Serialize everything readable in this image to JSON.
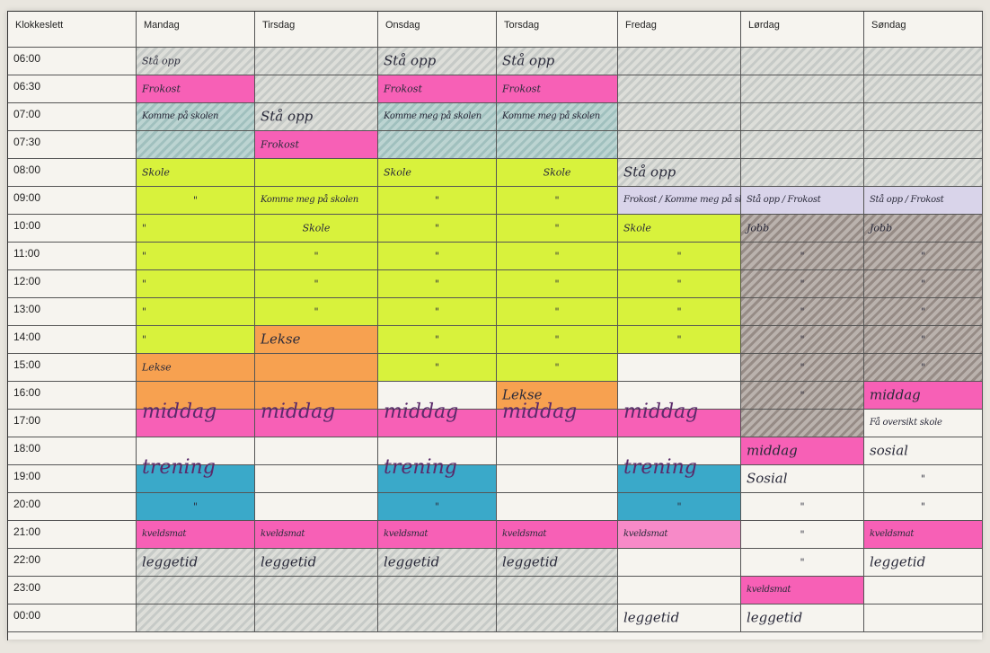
{
  "header": {
    "time_col": "Klokkeslett",
    "days": [
      "Mandag",
      "Tirsdag",
      "Onsdag",
      "Torsdag",
      "Fredag",
      "Lørdag",
      "Søndag"
    ]
  },
  "times": [
    "06:00",
    "06:30",
    "07:00",
    "07:30",
    "08:00",
    "09:00",
    "10:00",
    "11:00",
    "12:00",
    "13:00",
    "14:00",
    "15:00",
    "16:00",
    "17:00",
    "18:00",
    "19:00",
    "20:00",
    "21:00",
    "22:00",
    "23:00",
    "00:00"
  ],
  "colors": {
    "pink": "#f760b6",
    "yellow": "#d8f23c",
    "orange": "#f7a150",
    "blue": "#3aa9c9",
    "gray": "#a8b0ad",
    "teal": "#7fb5b0",
    "brown": "#8a7d78"
  },
  "cells": [
    {
      "c": 0,
      "r": 0,
      "t": "Stå opp",
      "style": "hatch-gray"
    },
    {
      "c": 0,
      "r": 1,
      "t": "Frokost",
      "style": "pink"
    },
    {
      "c": 0,
      "r": 2,
      "t": "Komme på skolen",
      "style": "hatch-teal",
      "cls": "small"
    },
    {
      "c": 0,
      "r": 3,
      "t": "",
      "style": "hatch-teal"
    },
    {
      "c": 0,
      "r": 4,
      "t": "Skole",
      "style": "yellow"
    },
    {
      "c": 0,
      "r": 5,
      "t": "\"",
      "style": "yellow",
      "cls": "centered"
    },
    {
      "c": 0,
      "r": 6,
      "t": "\"",
      "style": "yellow"
    },
    {
      "c": 0,
      "r": 7,
      "t": "\"",
      "style": "yellow"
    },
    {
      "c": 0,
      "r": 8,
      "t": "\"",
      "style": "yellow"
    },
    {
      "c": 0,
      "r": 9,
      "t": "\"",
      "style": "yellow"
    },
    {
      "c": 0,
      "r": 10,
      "t": "\"",
      "style": "yellow"
    },
    {
      "c": 0,
      "r": 11,
      "t": "Lekse",
      "style": "orange"
    },
    {
      "c": 0,
      "r": 12,
      "t": "",
      "style": "orange"
    },
    {
      "c": 0,
      "r": 13,
      "t": "middag",
      "style": "pink",
      "cls": "big"
    },
    {
      "c": 0,
      "r": 15,
      "t": "trening",
      "style": "blue",
      "cls": "big"
    },
    {
      "c": 0,
      "r": 16,
      "t": "\"",
      "style": "blue",
      "cls": "centered"
    },
    {
      "c": 0,
      "r": 17,
      "t": "kveldsmat",
      "style": "pink",
      "cls": "small"
    },
    {
      "c": 0,
      "r": 18,
      "t": "leggetid",
      "style": "hatch-gray",
      "cls": "mid"
    },
    {
      "c": 0,
      "r": 19,
      "t": "",
      "style": "hatch-gray"
    },
    {
      "c": 0,
      "r": 20,
      "t": "",
      "style": "hatch-gray"
    },
    {
      "c": 1,
      "r": 0,
      "t": "",
      "style": "hatch-gray"
    },
    {
      "c": 1,
      "r": 1,
      "t": "",
      "style": "hatch-gray"
    },
    {
      "c": 1,
      "r": 2,
      "t": "Stå opp",
      "style": "hatch-gray",
      "cls": "mid"
    },
    {
      "c": 1,
      "r": 3,
      "t": "Frokost",
      "style": "pink"
    },
    {
      "c": 1,
      "r": 4,
      "t": "",
      "style": "yellow"
    },
    {
      "c": 1,
      "r": 5,
      "t": "Komme meg på skolen",
      "style": "yellow",
      "cls": "small"
    },
    {
      "c": 1,
      "r": 6,
      "t": "Skole",
      "style": "yellow",
      "cls": "centered"
    },
    {
      "c": 1,
      "r": 7,
      "t": "\"",
      "style": "yellow",
      "cls": "centered"
    },
    {
      "c": 1,
      "r": 8,
      "t": "\"",
      "style": "yellow",
      "cls": "centered"
    },
    {
      "c": 1,
      "r": 9,
      "t": "\"",
      "style": "yellow",
      "cls": "centered"
    },
    {
      "c": 1,
      "r": 10,
      "t": "Lekse",
      "style": "orange",
      "cls": "mid"
    },
    {
      "c": 1,
      "r": 11,
      "t": "",
      "style": "orange"
    },
    {
      "c": 1,
      "r": 12,
      "t": "",
      "style": "orange"
    },
    {
      "c": 1,
      "r": 13,
      "t": "middag",
      "style": "pink",
      "cls": "big"
    },
    {
      "c": 1,
      "r": 17,
      "t": "kveldsmat",
      "style": "pink",
      "cls": "small"
    },
    {
      "c": 1,
      "r": 18,
      "t": "leggetid",
      "style": "hatch-gray",
      "cls": "mid"
    },
    {
      "c": 1,
      "r": 19,
      "t": "",
      "style": "hatch-gray"
    },
    {
      "c": 1,
      "r": 20,
      "t": "",
      "style": "hatch-gray"
    },
    {
      "c": 2,
      "r": 0,
      "t": "Stå opp",
      "style": "hatch-gray",
      "cls": "mid"
    },
    {
      "c": 2,
      "r": 1,
      "t": "Frokost",
      "style": "pink"
    },
    {
      "c": 2,
      "r": 2,
      "t": "Komme meg på skolen",
      "style": "hatch-teal",
      "cls": "small"
    },
    {
      "c": 2,
      "r": 3,
      "t": "",
      "style": "hatch-teal"
    },
    {
      "c": 2,
      "r": 4,
      "t": "Skole",
      "style": "yellow"
    },
    {
      "c": 2,
      "r": 5,
      "t": "\"",
      "style": "yellow",
      "cls": "centered"
    },
    {
      "c": 2,
      "r": 6,
      "t": "\"",
      "style": "yellow",
      "cls": "centered"
    },
    {
      "c": 2,
      "r": 7,
      "t": "\"",
      "style": "yellow",
      "cls": "centered"
    },
    {
      "c": 2,
      "r": 8,
      "t": "\"",
      "style": "yellow",
      "cls": "centered"
    },
    {
      "c": 2,
      "r": 9,
      "t": "\"",
      "style": "yellow",
      "cls": "centered"
    },
    {
      "c": 2,
      "r": 10,
      "t": "\"",
      "style": "yellow",
      "cls": "centered"
    },
    {
      "c": 2,
      "r": 11,
      "t": "\"",
      "style": "yellow",
      "cls": "centered"
    },
    {
      "c": 2,
      "r": 13,
      "t": "middag",
      "style": "pink",
      "cls": "big"
    },
    {
      "c": 2,
      "r": 15,
      "t": "trening",
      "style": "blue",
      "cls": "big"
    },
    {
      "c": 2,
      "r": 16,
      "t": "\"",
      "style": "blue",
      "cls": "centered"
    },
    {
      "c": 2,
      "r": 17,
      "t": "kveldsmat",
      "style": "pink",
      "cls": "small"
    },
    {
      "c": 2,
      "r": 18,
      "t": "leggetid",
      "style": "hatch-gray",
      "cls": "mid"
    },
    {
      "c": 2,
      "r": 19,
      "t": "",
      "style": "hatch-gray"
    },
    {
      "c": 2,
      "r": 20,
      "t": "",
      "style": "hatch-gray"
    },
    {
      "c": 3,
      "r": 0,
      "t": "Stå opp",
      "style": "hatch-gray",
      "cls": "mid"
    },
    {
      "c": 3,
      "r": 1,
      "t": "Frokost",
      "style": "pink"
    },
    {
      "c": 3,
      "r": 2,
      "t": "Komme meg på skolen",
      "style": "hatch-teal",
      "cls": "small"
    },
    {
      "c": 3,
      "r": 3,
      "t": "",
      "style": "hatch-teal"
    },
    {
      "c": 3,
      "r": 4,
      "t": "Skole",
      "style": "yellow",
      "cls": "centered"
    },
    {
      "c": 3,
      "r": 5,
      "t": "\"",
      "style": "yellow",
      "cls": "centered"
    },
    {
      "c": 3,
      "r": 6,
      "t": "\"",
      "style": "yellow",
      "cls": "centered"
    },
    {
      "c": 3,
      "r": 7,
      "t": "\"",
      "style": "yellow",
      "cls": "centered"
    },
    {
      "c": 3,
      "r": 8,
      "t": "\"",
      "style": "yellow",
      "cls": "centered"
    },
    {
      "c": 3,
      "r": 9,
      "t": "\"",
      "style": "yellow",
      "cls": "centered"
    },
    {
      "c": 3,
      "r": 10,
      "t": "\"",
      "style": "yellow",
      "cls": "centered"
    },
    {
      "c": 3,
      "r": 11,
      "t": "\"",
      "style": "yellow",
      "cls": "centered"
    },
    {
      "c": 3,
      "r": 12,
      "t": "Lekse",
      "style": "orange",
      "cls": "mid"
    },
    {
      "c": 3,
      "r": 13,
      "t": "middag",
      "style": "pink",
      "cls": "big"
    },
    {
      "c": 3,
      "r": 17,
      "t": "kveldsmat",
      "style": "pink",
      "cls": "small"
    },
    {
      "c": 3,
      "r": 18,
      "t": "leggetid",
      "style": "hatch-gray",
      "cls": "mid"
    },
    {
      "c": 3,
      "r": 19,
      "t": "",
      "style": "hatch-gray"
    },
    {
      "c": 3,
      "r": 20,
      "t": "",
      "style": "hatch-gray"
    },
    {
      "c": 4,
      "r": 0,
      "t": "",
      "style": "hatch-gray"
    },
    {
      "c": 4,
      "r": 1,
      "t": "",
      "style": "hatch-gray"
    },
    {
      "c": 4,
      "r": 2,
      "t": "",
      "style": "hatch-gray"
    },
    {
      "c": 4,
      "r": 3,
      "t": "",
      "style": "hatch-gray"
    },
    {
      "c": 4,
      "r": 4,
      "t": "Stå opp",
      "style": "hatch-gray",
      "cls": "mid"
    },
    {
      "c": 4,
      "r": 5,
      "t": "Frokost / Komme meg på skolen",
      "style": "lilac",
      "cls": "small"
    },
    {
      "c": 4,
      "r": 6,
      "t": "Skole",
      "style": "yellow"
    },
    {
      "c": 4,
      "r": 7,
      "t": "\"",
      "style": "yellow",
      "cls": "centered"
    },
    {
      "c": 4,
      "r": 8,
      "t": "\"",
      "style": "yellow",
      "cls": "centered"
    },
    {
      "c": 4,
      "r": 9,
      "t": "\"",
      "style": "yellow",
      "cls": "centered"
    },
    {
      "c": 4,
      "r": 10,
      "t": "\"",
      "style": "yellow",
      "cls": "centered"
    },
    {
      "c": 4,
      "r": 13,
      "t": "middag",
      "style": "pink",
      "cls": "big"
    },
    {
      "c": 4,
      "r": 15,
      "t": "trening",
      "style": "blue",
      "cls": "big"
    },
    {
      "c": 4,
      "r": 16,
      "t": "\"",
      "style": "blue",
      "cls": "centered"
    },
    {
      "c": 4,
      "r": 17,
      "t": "kveldsmat",
      "style": "pink-light",
      "cls": "small"
    },
    {
      "c": 4,
      "r": 20,
      "t": "leggetid",
      "style": "",
      "cls": "mid"
    },
    {
      "c": 5,
      "r": 0,
      "t": "",
      "style": "hatch-gray"
    },
    {
      "c": 5,
      "r": 1,
      "t": "",
      "style": "hatch-gray"
    },
    {
      "c": 5,
      "r": 2,
      "t": "",
      "style": "hatch-gray"
    },
    {
      "c": 5,
      "r": 3,
      "t": "",
      "style": "hatch-gray"
    },
    {
      "c": 5,
      "r": 4,
      "t": "",
      "style": "hatch-gray"
    },
    {
      "c": 5,
      "r": 5,
      "t": "Stå opp / Frokost",
      "style": "lilac",
      "cls": "small"
    },
    {
      "c": 5,
      "r": 6,
      "t": "Jobb",
      "style": "hatch-brown"
    },
    {
      "c": 5,
      "r": 7,
      "t": "\"",
      "style": "hatch-brown",
      "cls": "centered"
    },
    {
      "c": 5,
      "r": 8,
      "t": "\"",
      "style": "hatch-brown",
      "cls": "centered"
    },
    {
      "c": 5,
      "r": 9,
      "t": "\"",
      "style": "hatch-brown",
      "cls": "centered"
    },
    {
      "c": 5,
      "r": 10,
      "t": "\"",
      "style": "hatch-brown",
      "cls": "centered"
    },
    {
      "c": 5,
      "r": 11,
      "t": "\"",
      "style": "hatch-brown",
      "cls": "centered"
    },
    {
      "c": 5,
      "r": 12,
      "t": "\"",
      "style": "hatch-brown",
      "cls": "centered"
    },
    {
      "c": 5,
      "r": 13,
      "t": "",
      "style": "hatch-brown"
    },
    {
      "c": 5,
      "r": 14,
      "t": "middag",
      "style": "pink",
      "cls": "mid"
    },
    {
      "c": 5,
      "r": 15,
      "t": "Sosial",
      "style": "",
      "cls": "mid"
    },
    {
      "c": 5,
      "r": 16,
      "t": "\"",
      "style": "",
      "cls": "centered"
    },
    {
      "c": 5,
      "r": 17,
      "t": "\"",
      "style": "",
      "cls": "centered"
    },
    {
      "c": 5,
      "r": 18,
      "t": "\"",
      "style": "",
      "cls": "centered"
    },
    {
      "c": 5,
      "r": 19,
      "t": "kveldsmat",
      "style": "pink",
      "cls": "small"
    },
    {
      "c": 5,
      "r": 20,
      "t": "leggetid",
      "style": "",
      "cls": "mid"
    },
    {
      "c": 6,
      "r": 0,
      "t": "",
      "style": "hatch-gray"
    },
    {
      "c": 6,
      "r": 1,
      "t": "",
      "style": "hatch-gray"
    },
    {
      "c": 6,
      "r": 2,
      "t": "",
      "style": "hatch-gray"
    },
    {
      "c": 6,
      "r": 3,
      "t": "",
      "style": "hatch-gray"
    },
    {
      "c": 6,
      "r": 4,
      "t": "",
      "style": "hatch-gray"
    },
    {
      "c": 6,
      "r": 5,
      "t": "Stå opp / Frokost",
      "style": "lilac",
      "cls": "small"
    },
    {
      "c": 6,
      "r": 6,
      "t": "Jobb",
      "style": "hatch-brown"
    },
    {
      "c": 6,
      "r": 7,
      "t": "\"",
      "style": "hatch-brown",
      "cls": "centered"
    },
    {
      "c": 6,
      "r": 8,
      "t": "\"",
      "style": "hatch-brown",
      "cls": "centered"
    },
    {
      "c": 6,
      "r": 9,
      "t": "\"",
      "style": "hatch-brown",
      "cls": "centered"
    },
    {
      "c": 6,
      "r": 10,
      "t": "\"",
      "style": "hatch-brown",
      "cls": "centered"
    },
    {
      "c": 6,
      "r": 11,
      "t": "\"",
      "style": "hatch-brown",
      "cls": "centered"
    },
    {
      "c": 6,
      "r": 12,
      "t": "middag",
      "style": "pink",
      "cls": "mid"
    },
    {
      "c": 6,
      "r": 13,
      "t": "Få oversikt skole",
      "style": "",
      "cls": "small"
    },
    {
      "c": 6,
      "r": 14,
      "t": "sosial",
      "style": "",
      "cls": "mid"
    },
    {
      "c": 6,
      "r": 15,
      "t": "\"",
      "style": "",
      "cls": "centered"
    },
    {
      "c": 6,
      "r": 16,
      "t": "\"",
      "style": "",
      "cls": "centered"
    },
    {
      "c": 6,
      "r": 17,
      "t": "kveldsmat",
      "style": "pink",
      "cls": "small"
    },
    {
      "c": 6,
      "r": 18,
      "t": "leggetid",
      "style": "",
      "cls": "mid"
    }
  ]
}
